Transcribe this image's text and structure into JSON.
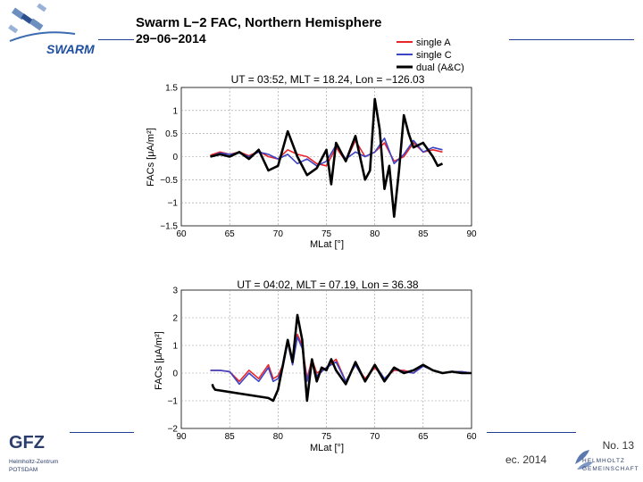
{
  "header": {
    "title": "Swarm L−2 FAC, Northern Hemisphere",
    "date": "29−06−2014",
    "logo_text": "SWARM"
  },
  "legend": {
    "entries": [
      {
        "label": "single A",
        "color": "#e8262a"
      },
      {
        "label": "single C",
        "color": "#3b44c4"
      },
      {
        "label": "dual (A&C)",
        "color": "#000000"
      }
    ]
  },
  "chart_data": [
    {
      "type": "line",
      "title": "UT = 03:52, MLT = 18.24, Lon = −126.03",
      "xlabel": "MLat [°]",
      "ylabel": "FACs [μA/m²]",
      "xlim": [
        60,
        90
      ],
      "ylim": [
        -1.5,
        1.5
      ],
      "xticks": [
        "60",
        "65",
        "70",
        "75",
        "80",
        "85",
        "90"
      ],
      "yticks": [
        "−1.5",
        "−1",
        "−0.5",
        "0",
        "0.5",
        "1",
        "1.5"
      ],
      "grid": true,
      "series": [
        {
          "name": "single A",
          "color": "#e8262a",
          "x": [
            63,
            64,
            65,
            66,
            67,
            68,
            69,
            70,
            71,
            72,
            73,
            74,
            75,
            76,
            77,
            78,
            79,
            80,
            81,
            82,
            83,
            84,
            85,
            86,
            87
          ],
          "y": [
            0.03,
            0.1,
            0.05,
            0.1,
            0.02,
            0.12,
            0.0,
            -0.05,
            0.15,
            0.05,
            0.0,
            -0.15,
            -0.2,
            0.2,
            -0.1,
            0.35,
            0.0,
            0.1,
            0.3,
            -0.1,
            0.0,
            0.3,
            0.1,
            0.15,
            0.1
          ]
        },
        {
          "name": "single C",
          "color": "#3b44c4",
          "x": [
            63,
            64,
            65,
            66,
            67,
            68,
            69,
            70,
            71,
            72,
            73,
            74,
            75,
            76,
            77,
            78,
            79,
            80,
            81,
            82,
            83,
            84,
            85,
            86,
            87
          ],
          "y": [
            0.0,
            0.08,
            0.05,
            0.08,
            0.0,
            0.1,
            0.05,
            -0.05,
            0.05,
            -0.15,
            -0.05,
            -0.2,
            -0.1,
            0.25,
            -0.05,
            0.1,
            0.0,
            0.1,
            0.4,
            -0.15,
            0.05,
            0.35,
            0.1,
            0.2,
            0.15
          ]
        },
        {
          "name": "dual (A&C)",
          "color": "#000000",
          "x": [
            63,
            64,
            65,
            66,
            67,
            68,
            69,
            70,
            71,
            72,
            73,
            74,
            75,
            75.5,
            76,
            77,
            78,
            79,
            79.5,
            80,
            80.5,
            81,
            81.5,
            82,
            82.5,
            83,
            83.5,
            84,
            85,
            86,
            86.5,
            87
          ],
          "y": [
            0.0,
            0.05,
            0.0,
            0.1,
            -0.05,
            0.15,
            -0.3,
            -0.2,
            0.55,
            0.0,
            -0.4,
            -0.25,
            0.15,
            -0.6,
            0.3,
            -0.1,
            0.45,
            -0.5,
            -0.3,
            1.25,
            0.6,
            -0.7,
            -0.2,
            -1.3,
            -0.3,
            0.9,
            0.5,
            0.2,
            0.3,
            0.0,
            -0.2,
            -0.15
          ]
        }
      ]
    },
    {
      "type": "line",
      "title": "UT = 04:02, MLT = 07.19, Lon = 36.38",
      "xlabel": "MLat [°]",
      "ylabel": "FACs [μA/m²]",
      "xlim": [
        90,
        60
      ],
      "ylim": [
        -2,
        3
      ],
      "xticks": [
        "90",
        "85",
        "80",
        "75",
        "70",
        "65",
        "60"
      ],
      "yticks": [
        "−2",
        "−1",
        "0",
        "1",
        "2",
        "3"
      ],
      "grid": true,
      "series": [
        {
          "name": "single A",
          "color": "#e8262a",
          "x": [
            87,
            86,
            85,
            84,
            83,
            82,
            81,
            80.5,
            80,
            79.5,
            79,
            78.5,
            78,
            77.5,
            77,
            76.5,
            76,
            75,
            74,
            73,
            72,
            71,
            70,
            69,
            68,
            67,
            66,
            65,
            64,
            63,
            62,
            61,
            60
          ],
          "y": [
            0.1,
            0.1,
            0.05,
            -0.3,
            0.1,
            -0.2,
            0.3,
            -0.2,
            -0.1,
            0.3,
            1.2,
            0.5,
            1.4,
            1.0,
            -0.2,
            0.5,
            0.0,
            0.2,
            0.5,
            -0.3,
            0.3,
            -0.2,
            0.2,
            -0.2,
            0.1,
            0.1,
            0.0,
            0.3,
            0.1,
            0.0,
            0.05,
            0.05,
            0.0
          ]
        },
        {
          "name": "single C",
          "color": "#3b44c4",
          "x": [
            87,
            86,
            85,
            84,
            83,
            82,
            81,
            80.5,
            80,
            79.5,
            79,
            78.5,
            78,
            77.5,
            77,
            76.5,
            76,
            75,
            74,
            73,
            72,
            71,
            70,
            69,
            68,
            67,
            66,
            65,
            64,
            63,
            62,
            61,
            60
          ],
          "y": [
            0.1,
            0.1,
            0.05,
            -0.4,
            0.0,
            -0.3,
            0.2,
            -0.3,
            -0.2,
            0.2,
            1.1,
            0.3,
            1.3,
            0.9,
            -0.3,
            0.4,
            -0.1,
            0.2,
            0.4,
            -0.3,
            0.3,
            -0.3,
            0.3,
            -0.2,
            0.15,
            0.05,
            0.0,
            0.25,
            0.1,
            0.0,
            0.05,
            0.05,
            0.0
          ]
        },
        {
          "name": "dual (A&C)",
          "color": "#000000",
          "x": [
            86.8,
            86.7,
            86.5,
            81,
            80.5,
            80,
            79.5,
            79,
            78.5,
            78,
            77.5,
            77,
            76.5,
            76,
            75.5,
            75,
            74.5,
            74,
            73,
            72,
            71,
            70,
            69,
            68,
            67,
            66,
            65,
            64,
            63,
            62,
            61,
            60
          ],
          "y": [
            -0.4,
            -0.5,
            -0.6,
            -0.9,
            -1.0,
            -0.6,
            0.3,
            1.2,
            0.4,
            2.1,
            1.2,
            -1.0,
            0.5,
            -0.3,
            0.2,
            0.1,
            0.5,
            0.1,
            -0.4,
            0.4,
            -0.3,
            0.3,
            -0.3,
            0.2,
            0.0,
            0.1,
            0.3,
            0.1,
            0.0,
            0.05,
            0.0,
            0.0
          ]
        }
      ]
    }
  ],
  "footer": {
    "logo_text": "GFZ",
    "logo_subtext_1": "Helmholtz-Zentrum",
    "logo_subtext_2": "POTSDAM",
    "page_number": "No. 13",
    "date_fragment": "ec. 2014",
    "helmholtz_text_1": "HELMHOLTZ",
    "helmholtz_text_2": "GEMEINSCHAFT"
  }
}
